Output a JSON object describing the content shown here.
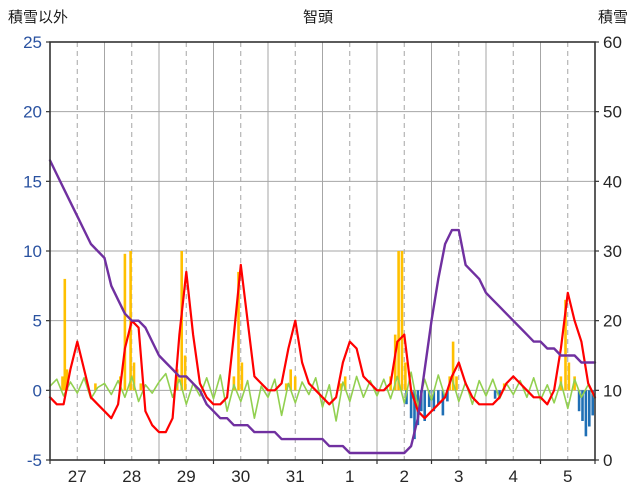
{
  "header": {
    "left_axis_title": "積雪以外",
    "title": "智頭",
    "right_axis_title": "積雪"
  },
  "chart_data": {
    "type": "line",
    "title": "智頭",
    "left_axis": {
      "label": "積雪以外",
      "min": -5,
      "max": 25,
      "ticks": [
        25,
        20,
        15,
        10,
        5,
        0,
        -5
      ],
      "tick_color": "#2a52a0"
    },
    "right_axis": {
      "label": "積雪",
      "min": 0,
      "max": 60,
      "ticks": [
        60,
        50,
        40,
        30,
        20,
        10,
        0
      ],
      "tick_color": "#262626"
    },
    "x_axis": {
      "day_labels": [
        "27",
        "28",
        "29",
        "30",
        "31",
        "1",
        "2",
        "3",
        "4",
        "5"
      ],
      "hours_total": 240,
      "tick_color": "#262626"
    },
    "grid": {
      "color": "#a6a6a6",
      "frame_color": "#333333",
      "solid_every_hours": 24,
      "dashed_offset_hours": 12
    },
    "series": [
      {
        "name": "orange-bars",
        "type": "bar",
        "axis": "left",
        "color": "#ffc000",
        "points": [
          {
            "t": 5.5,
            "v": 1
          },
          {
            "t": 6.5,
            "v": 8
          },
          {
            "t": 7.5,
            "v": 1.5
          },
          {
            "t": 20,
            "v": 0.5
          },
          {
            "t": 31,
            "v": 1
          },
          {
            "t": 33,
            "v": 9.8
          },
          {
            "t": 35.5,
            "v": 10
          },
          {
            "t": 37,
            "v": 2
          },
          {
            "t": 40,
            "v": 0.5
          },
          {
            "t": 56,
            "v": 1.5
          },
          {
            "t": 58,
            "v": 10
          },
          {
            "t": 59.5,
            "v": 2.5
          },
          {
            "t": 81,
            "v": 1
          },
          {
            "t": 83,
            "v": 8.5
          },
          {
            "t": 84.5,
            "v": 2
          },
          {
            "t": 104,
            "v": 0.5
          },
          {
            "t": 106,
            "v": 1.5
          },
          {
            "t": 108,
            "v": 1
          },
          {
            "t": 128,
            "v": 0.5
          },
          {
            "t": 130,
            "v": 1
          },
          {
            "t": 150,
            "v": 1
          },
          {
            "t": 152,
            "v": 4
          },
          {
            "t": 153.5,
            "v": 10
          },
          {
            "t": 155,
            "v": 10
          },
          {
            "t": 156.5,
            "v": 2
          },
          {
            "t": 176,
            "v": 1
          },
          {
            "t": 177.5,
            "v": 3.5
          },
          {
            "t": 179,
            "v": 1
          },
          {
            "t": 200,
            "v": 0.5
          },
          {
            "t": 225,
            "v": 1
          },
          {
            "t": 227,
            "v": 6.5
          },
          {
            "t": 228.5,
            "v": 2
          },
          {
            "t": 231,
            "v": 1
          }
        ]
      },
      {
        "name": "blue-bars",
        "type": "bar",
        "axis": "left",
        "color": "#1f6fb5",
        "points": [
          {
            "t": 157,
            "v": -1
          },
          {
            "t": 159,
            "v": -2
          },
          {
            "t": 160.5,
            "v": -3.5
          },
          {
            "t": 162,
            "v": -2.5
          },
          {
            "t": 163.5,
            "v": -1.5
          },
          {
            "t": 165,
            "v": -2.2
          },
          {
            "t": 167,
            "v": -1.2
          },
          {
            "t": 169,
            "v": -1.5
          },
          {
            "t": 171,
            "v": -1
          },
          {
            "t": 173,
            "v": -1.8
          },
          {
            "t": 175,
            "v": -0.8
          },
          {
            "t": 196,
            "v": -0.6
          },
          {
            "t": 198,
            "v": -0.4
          },
          {
            "t": 233,
            "v": -1.5
          },
          {
            "t": 234.5,
            "v": -2.2
          },
          {
            "t": 236,
            "v": -3.3
          },
          {
            "t": 237.5,
            "v": -2.6
          },
          {
            "t": 239,
            "v": -1.8
          }
        ]
      },
      {
        "name": "green-line",
        "type": "line",
        "axis": "left",
        "color": "#92d050",
        "width": 1.6,
        "step_hours": 3,
        "values": [
          0.3,
          0.8,
          -0.4,
          0.6,
          -0.2,
          0.9,
          -0.6,
          0.2,
          0.5,
          -0.3,
          0.7,
          -0.5,
          1.0,
          -0.8,
          0.4,
          -0.2,
          0.6,
          1.2,
          -0.5,
          0.8,
          -1.0,
          0.5,
          -0.4,
          0.9,
          -0.6,
          1.1,
          -1.5,
          0.4,
          -0.8,
          0.7,
          -2.0,
          0.3,
          -0.5,
          0.8,
          -1.8,
          0.5,
          -0.9,
          0.6,
          -0.3,
          0.9,
          -1.2,
          0.4,
          -2.2,
          0.6,
          -0.8,
          1.0,
          -0.5,
          0.7,
          -0.4,
          0.8,
          -0.6,
          1.0,
          -0.9,
          1.3,
          -1.2,
          0.8,
          -0.7,
          1.1,
          -0.5,
          0.9,
          -0.8,
          0.6,
          -1.0,
          0.7,
          -0.4,
          0.8,
          -0.6,
          0.5,
          -0.3,
          0.7,
          -0.5,
          0.9,
          -0.7,
          0.4,
          -0.9,
          0.6,
          -1.3,
          0.8,
          -0.5,
          0.4,
          -0.6
        ]
      },
      {
        "name": "red-line",
        "type": "line",
        "axis": "left",
        "color": "#ff0000",
        "width": 2.2,
        "step_hours": 3,
        "values": [
          -0.5,
          -1,
          -1,
          1.5,
          3.5,
          1.5,
          -0.5,
          -1,
          -1.5,
          -2,
          -1,
          3,
          5,
          4.5,
          -1.5,
          -2.5,
          -3,
          -3,
          -2,
          4,
          8.5,
          4,
          0.5,
          -0.5,
          -1,
          -1,
          -0.5,
          4,
          9,
          5,
          1,
          0.5,
          0,
          0,
          0.5,
          3,
          5,
          2,
          0.5,
          0,
          -0.5,
          -1,
          -0.5,
          2,
          3.5,
          3,
          1,
          0.5,
          0,
          0,
          0.5,
          3.5,
          4,
          0,
          -1.5,
          -2,
          -1.5,
          -1,
          -0.5,
          1,
          2,
          0.5,
          -0.5,
          -1,
          -1,
          -1,
          -0.5,
          0.5,
          1,
          0.5,
          0,
          -0.5,
          -0.5,
          -1,
          0,
          3,
          7,
          5,
          3.5,
          0.5,
          -0.5
        ]
      },
      {
        "name": "purple-line",
        "type": "line",
        "axis": "right",
        "color": "#7030a0",
        "width": 2.4,
        "step_hours": 3,
        "values": [
          43,
          41,
          39,
          37,
          35,
          33,
          31,
          30,
          29,
          25,
          23,
          21,
          20,
          20,
          19,
          17,
          15,
          14,
          13,
          12,
          12,
          11,
          10,
          8,
          7,
          6,
          6,
          5,
          5,
          5,
          4,
          4,
          4,
          4,
          3,
          3,
          3,
          3,
          3,
          3,
          3,
          2,
          2,
          2,
          1,
          1,
          1,
          1,
          1,
          1,
          1,
          1,
          1,
          2,
          6,
          13,
          20,
          26,
          31,
          33,
          33,
          28,
          27,
          26,
          24,
          23,
          22,
          21,
          20,
          19,
          18,
          17,
          17,
          16,
          16,
          15,
          15,
          15,
          14,
          14,
          14
        ]
      }
    ]
  }
}
